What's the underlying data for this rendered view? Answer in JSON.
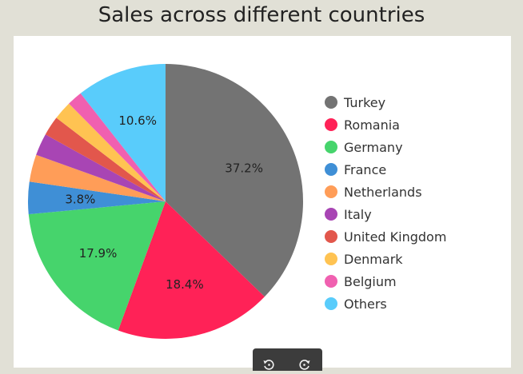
{
  "title": "Sales across different countries",
  "chart_data": {
    "type": "pie",
    "title": "Sales across different countries",
    "slices": [
      {
        "label": "Turkey",
        "value": 37.2,
        "color": "#737373",
        "show_label": true
      },
      {
        "label": "Romania",
        "value": 18.4,
        "color": "#ff2257",
        "show_label": true
      },
      {
        "label": "Germany",
        "value": 17.9,
        "color": "#46d46c",
        "show_label": true
      },
      {
        "label": "France",
        "value": 3.8,
        "color": "#3f8fd6",
        "show_label": true
      },
      {
        "label": "Netherlands",
        "value": 3.2,
        "color": "#ff9d58",
        "show_label": false
      },
      {
        "label": "Italy",
        "value": 2.6,
        "color": "#a845b4",
        "show_label": false
      },
      {
        "label": "United Kingdom",
        "value": 2.3,
        "color": "#e2574c",
        "show_label": false
      },
      {
        "label": "Denmark",
        "value": 2.2,
        "color": "#ffc352",
        "show_label": false
      },
      {
        "label": "Belgium",
        "value": 1.8,
        "color": "#f060b0",
        "show_label": false
      },
      {
        "label": "Others",
        "value": 10.6,
        "color": "#59ccfb",
        "show_label": true
      }
    ],
    "legend_position": "right"
  },
  "toolbar": {
    "buttons": [
      {
        "icon": "rotate-left-icon"
      },
      {
        "icon": "rotate-right-icon"
      }
    ]
  }
}
